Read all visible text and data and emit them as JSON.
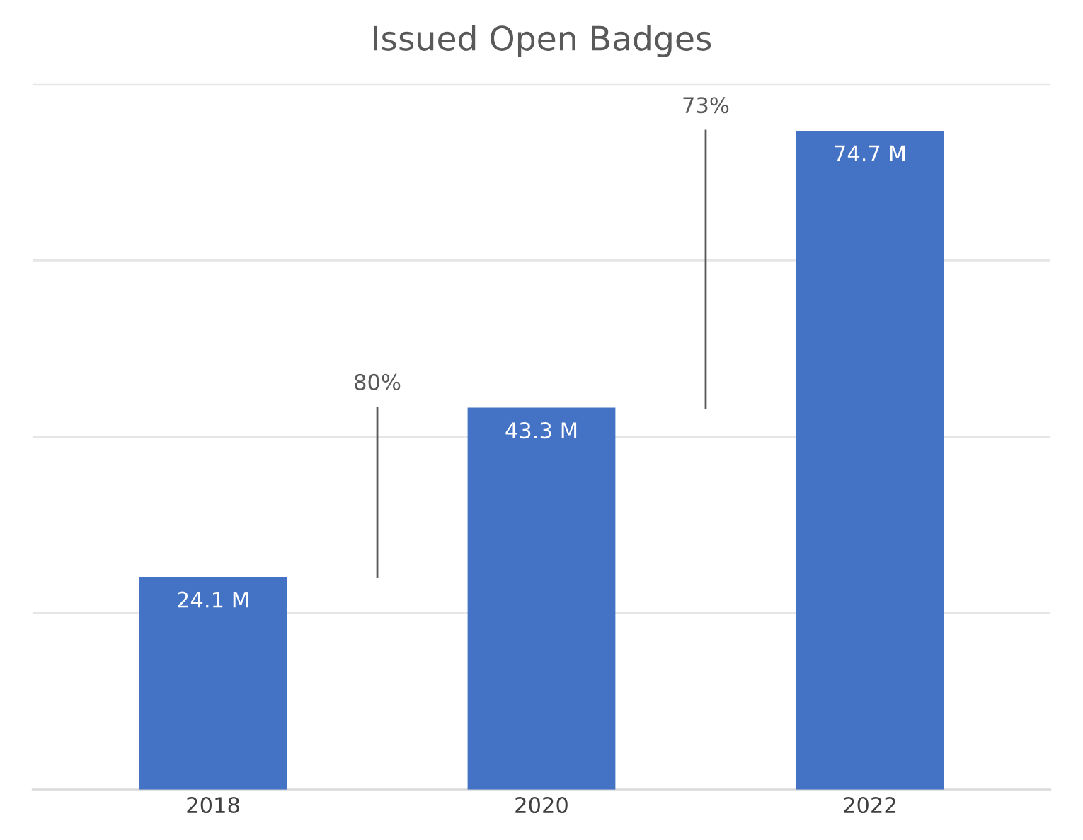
{
  "chart_data": {
    "type": "bar",
    "title": "Issued Open Badges",
    "categories": [
      "2018",
      "2020",
      "2022"
    ],
    "values": [
      24.1,
      43.3,
      74.7
    ],
    "value_labels": [
      "24.1 M",
      "43.3 M",
      "74.7 M"
    ],
    "color": "#4472c4",
    "ylim": [
      0,
      80
    ],
    "yticks": [
      {
        "value": 0,
        "label": null
      },
      {
        "value": 20,
        "label": null
      },
      {
        "value": 40,
        "label": null
      },
      {
        "value": 60,
        "label": null
      },
      {
        "value": 80,
        "label": null
      }
    ],
    "tick_labels": "x",
    "grid": "y",
    "annotations": [
      "80%",
      "73%"
    ]
  }
}
